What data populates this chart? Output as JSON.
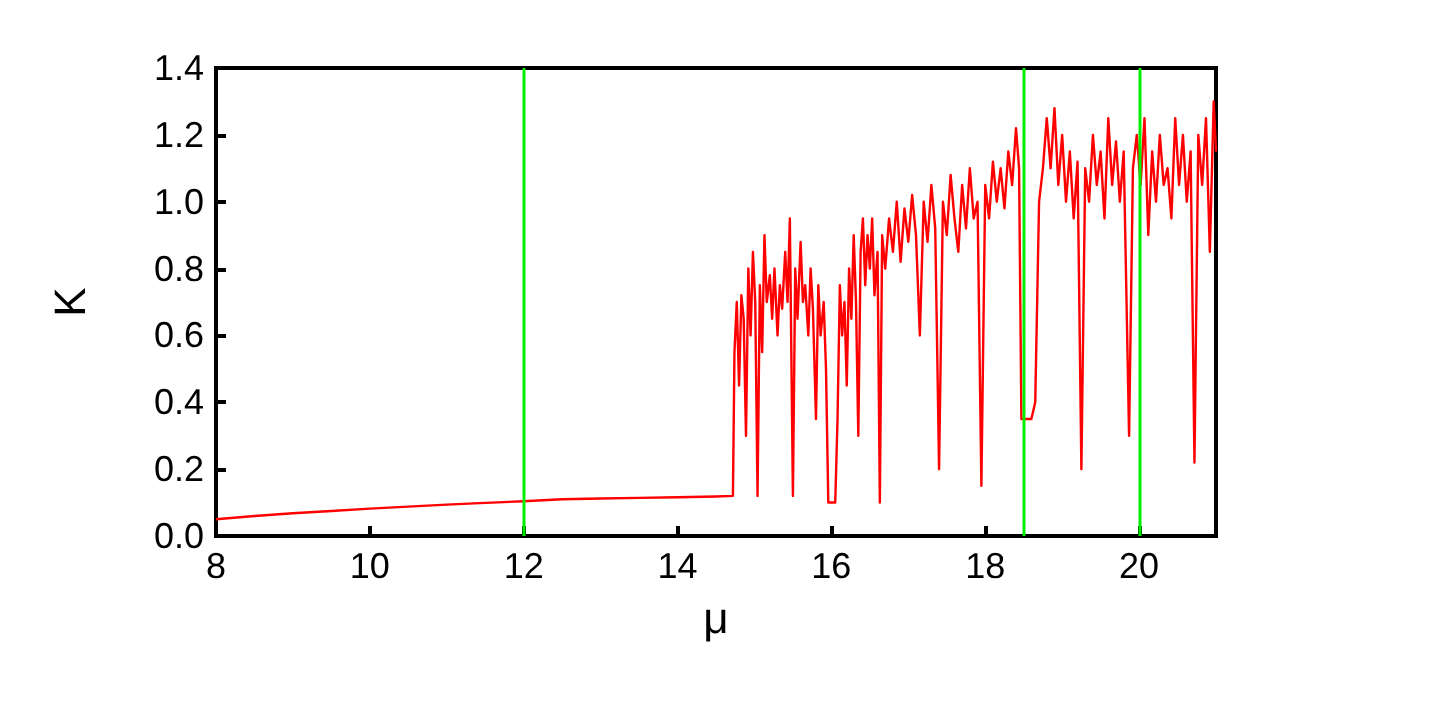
{
  "chart_data": {
    "type": "line",
    "xlabel": "μ",
    "ylabel": "K",
    "x": [
      8,
      8.5,
      9,
      9.5,
      10,
      10.5,
      11,
      11.5,
      12,
      12.5,
      13,
      13.5,
      14,
      14.5,
      14.72,
      14.74,
      14.77,
      14.8,
      14.83,
      14.86,
      14.89,
      14.92,
      14.95,
      14.98,
      15.01,
      15.04,
      15.07,
      15.1,
      15.13,
      15.16,
      15.2,
      15.23,
      15.26,
      15.3,
      15.33,
      15.36,
      15.4,
      15.43,
      15.46,
      15.5,
      15.53,
      15.56,
      15.6,
      15.63,
      15.66,
      15.7,
      15.73,
      15.76,
      15.8,
      15.83,
      15.86,
      15.9,
      15.93,
      15.96,
      16.05,
      16.08,
      16.11,
      16.14,
      16.17,
      16.2,
      16.23,
      16.26,
      16.29,
      16.32,
      16.35,
      16.38,
      16.41,
      16.44,
      16.47,
      16.5,
      16.53,
      16.56,
      16.6,
      16.63,
      16.66,
      16.7,
      16.75,
      16.8,
      16.85,
      16.9,
      16.95,
      17,
      17.05,
      17.1,
      17.15,
      17.2,
      17.25,
      17.3,
      17.35,
      17.4,
      17.45,
      17.5,
      17.55,
      17.6,
      17.65,
      17.7,
      17.75,
      17.8,
      17.85,
      17.9,
      17.95,
      18,
      18.05,
      18.1,
      18.15,
      18.2,
      18.25,
      18.3,
      18.35,
      18.4,
      18.44,
      18.47,
      18.6,
      18.65,
      18.7,
      18.75,
      18.8,
      18.85,
      18.9,
      18.95,
      19,
      19.05,
      19.1,
      19.15,
      19.2,
      19.25,
      19.3,
      19.35,
      19.4,
      19.45,
      19.5,
      19.55,
      19.6,
      19.65,
      19.7,
      19.75,
      19.8,
      19.87,
      19.92,
      19.97,
      20.02,
      20.07,
      20.12,
      20.17,
      20.22,
      20.27,
      20.32,
      20.37,
      20.42,
      20.47,
      20.52,
      20.57,
      20.62,
      20.67,
      20.72,
      20.77,
      20.82,
      20.87,
      20.92,
      20.97,
      21
    ],
    "series": [
      {
        "color": "#ff0000",
        "values": [
          0.05,
          0.06,
          0.068,
          0.075,
          0.082,
          0.088,
          0.094,
          0.099,
          0.104,
          0.11,
          0.112,
          0.114,
          0.116,
          0.118,
          0.12,
          0.55,
          0.7,
          0.45,
          0.72,
          0.65,
          0.3,
          0.8,
          0.6,
          0.85,
          0.7,
          0.12,
          0.75,
          0.55,
          0.9,
          0.7,
          0.78,
          0.65,
          0.8,
          0.6,
          0.75,
          0.68,
          0.85,
          0.7,
          0.95,
          0.12,
          0.8,
          0.65,
          0.88,
          0.7,
          0.75,
          0.6,
          0.8,
          0.68,
          0.35,
          0.75,
          0.6,
          0.7,
          0.5,
          0.1,
          0.1,
          0.35,
          0.75,
          0.6,
          0.7,
          0.45,
          0.8,
          0.65,
          0.9,
          0.7,
          0.3,
          0.85,
          0.95,
          0.75,
          0.9,
          0.8,
          0.95,
          0.72,
          0.85,
          0.1,
          0.9,
          0.8,
          0.95,
          0.85,
          1.0,
          0.82,
          0.98,
          0.88,
          1.02,
          0.9,
          0.6,
          1.0,
          0.88,
          1.05,
          0.92,
          0.2,
          1.0,
          0.9,
          1.08,
          0.95,
          0.85,
          1.05,
          0.92,
          1.1,
          0.95,
          1.0,
          0.15,
          1.05,
          0.95,
          1.12,
          1.0,
          1.1,
          0.98,
          1.15,
          1.05,
          1.22,
          1.1,
          0.35,
          0.35,
          0.4,
          1.0,
          1.1,
          1.25,
          1.1,
          1.28,
          1.05,
          1.2,
          1.0,
          1.15,
          0.95,
          1.12,
          0.2,
          1.1,
          1.0,
          1.2,
          1.05,
          1.15,
          0.95,
          1.25,
          1.05,
          1.18,
          1.0,
          1.15,
          0.3,
          1.1,
          1.2,
          1.05,
          1.25,
          0.9,
          1.15,
          1.0,
          1.2,
          1.05,
          1.1,
          0.95,
          1.25,
          1.05,
          1.2,
          1.0,
          1.15,
          0.22,
          1.2,
          1.05,
          1.25,
          0.85,
          1.3,
          1.15
        ]
      }
    ],
    "xlim": [
      8,
      21
    ],
    "xticks": [
      8,
      10,
      12,
      14,
      16,
      18,
      20
    ],
    "ylim": [
      0,
      1.4
    ],
    "yticks": [
      {
        "value": 0,
        "label": "0.0"
      },
      {
        "value": 0.2,
        "label": "0.2"
      },
      {
        "value": 0.4,
        "label": "0.4"
      },
      {
        "value": 0.6,
        "label": "0.6"
      },
      {
        "value": 0.8,
        "label": "0.8"
      },
      {
        "value": 1.0,
        "label": "1.0"
      },
      {
        "value": 1.2,
        "label": "1.2"
      },
      {
        "value": 1.4,
        "label": "1.4"
      }
    ],
    "ref_lines": [
      {
        "axis": "x",
        "value": 12,
        "color": "#00ee00"
      },
      {
        "axis": "x",
        "value": 18.5,
        "color": "#00ee00"
      },
      {
        "axis": "x",
        "value": 20,
        "color": "#00ee00"
      }
    ],
    "grid": false,
    "marker": "none",
    "line_style": "solid"
  }
}
